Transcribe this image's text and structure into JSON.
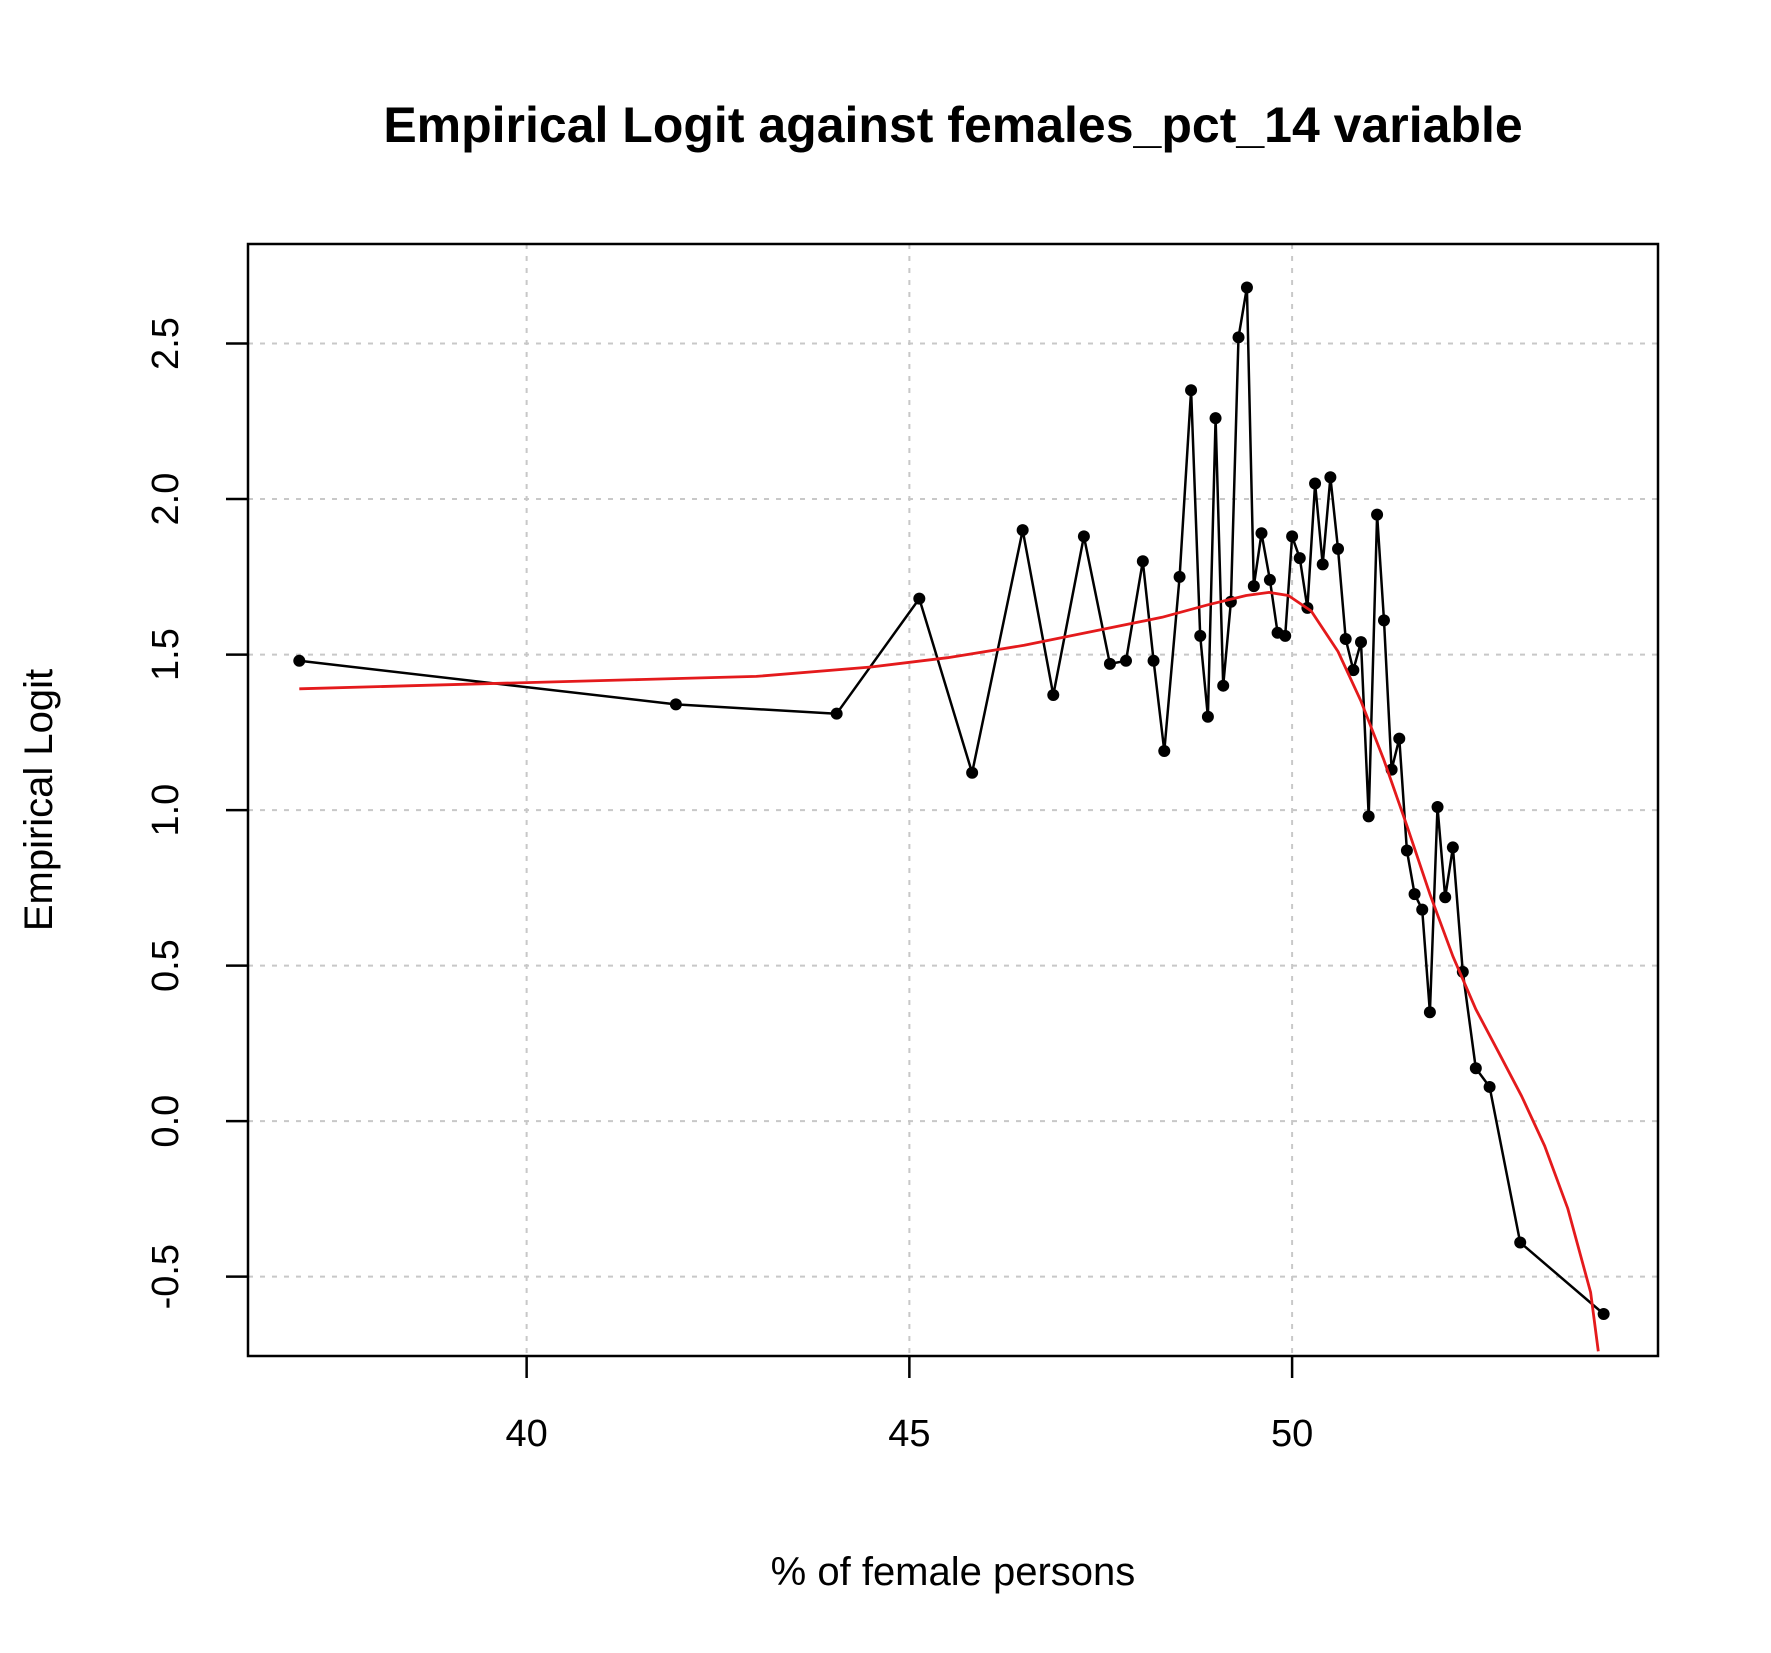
{
  "chart_data": {
    "type": "line",
    "title": "Empirical Logit against females_pct_14 variable",
    "xlabel": "% of female persons",
    "ylabel": "Empirical Logit",
    "xlim": [
      36.36,
      54.78
    ],
    "ylim": [
      -0.755,
      2.82
    ],
    "xticks": [
      40,
      45,
      50
    ],
    "yticks": [
      -0.5,
      0.0,
      0.5,
      1.0,
      1.5,
      2.0,
      2.5
    ],
    "xtick_labels": [
      "40",
      "45",
      "50"
    ],
    "ytick_labels": [
      "-0.5",
      "0.0",
      "0.5",
      "1.0",
      "1.5",
      "2.0",
      "2.5"
    ],
    "grid": true,
    "legend": "none",
    "series": [
      {
        "color": "#000000",
        "style": "line+points",
        "x": [
          37.03,
          41.95,
          44.05,
          45.13,
          45.82,
          46.48,
          46.88,
          47.28,
          47.62,
          47.83,
          48.05,
          48.19,
          48.33,
          48.53,
          48.68,
          48.8,
          48.9,
          49.0,
          49.1,
          49.2,
          49.3,
          49.41,
          49.5,
          49.6,
          49.71,
          49.81,
          49.91,
          50.0,
          50.1,
          50.2,
          50.3,
          50.4,
          50.5,
          50.6,
          50.7,
          50.8,
          50.9,
          51.0,
          51.11,
          51.2,
          51.3,
          51.4,
          51.5,
          51.6,
          51.7,
          51.8,
          51.9,
          52.0,
          52.1,
          52.23,
          52.4,
          52.58,
          52.98,
          54.07
        ],
        "y": [
          1.48,
          1.34,
          1.31,
          1.68,
          1.12,
          1.9,
          1.37,
          1.88,
          1.47,
          1.48,
          1.8,
          1.48,
          1.19,
          1.75,
          2.35,
          1.56,
          1.3,
          2.26,
          1.4,
          1.67,
          2.52,
          2.68,
          1.72,
          1.89,
          1.74,
          1.57,
          1.56,
          1.88,
          1.81,
          1.65,
          2.05,
          1.79,
          2.07,
          1.84,
          1.55,
          1.45,
          1.54,
          0.98,
          1.95,
          1.61,
          1.13,
          1.23,
          0.87,
          0.73,
          0.68,
          0.35,
          1.01,
          0.72,
          0.88,
          0.48,
          0.17,
          0.11,
          -0.39,
          -0.62
        ]
      },
      {
        "color": "#e41a1c",
        "style": "line",
        "x": [
          37.03,
          38.5,
          40.0,
          41.5,
          43.0,
          44.5,
          45.5,
          46.5,
          47.5,
          48.3,
          48.9,
          49.4,
          49.7,
          49.95,
          50.25,
          50.6,
          50.9,
          51.2,
          51.5,
          51.8,
          52.1,
          52.4,
          52.7,
          53.0,
          53.3,
          53.6,
          53.9,
          54.0
        ],
        "y": [
          1.39,
          1.4,
          1.41,
          1.42,
          1.43,
          1.46,
          1.49,
          1.53,
          1.58,
          1.62,
          1.66,
          1.69,
          1.7,
          1.69,
          1.64,
          1.51,
          1.35,
          1.16,
          0.95,
          0.73,
          0.53,
          0.36,
          0.22,
          0.08,
          -0.08,
          -0.28,
          -0.55,
          -0.74
        ]
      }
    ]
  }
}
